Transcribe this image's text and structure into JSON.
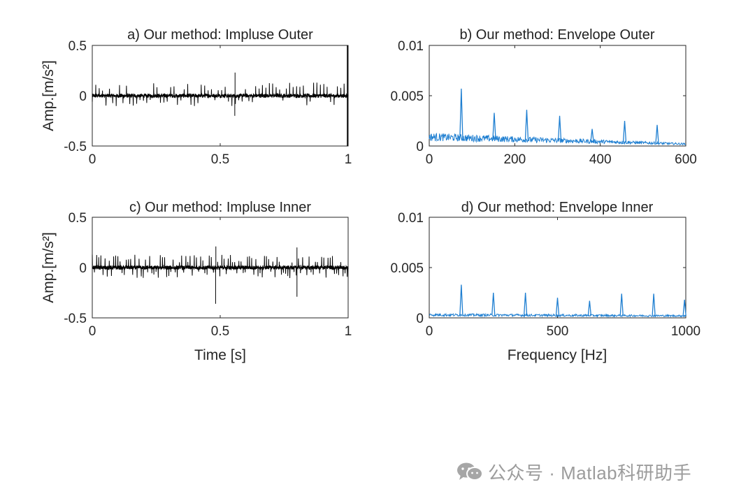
{
  "chart_data": [
    {
      "id": "a",
      "type": "line",
      "title": "a) Our method: Impluse Outer",
      "xlabel": "",
      "ylabel": "Amp.[m/s²]",
      "xlim": [
        0,
        1
      ],
      "ylim": [
        -0.5,
        0.5
      ],
      "xticks": [
        0,
        0.5,
        1
      ],
      "xtick_labels": [
        "0",
        "0.5",
        "1"
      ],
      "yticks": [
        -0.5,
        0,
        0.5
      ],
      "ytick_labels": [
        "-0.5",
        "0",
        "0.5"
      ],
      "color": "#000000",
      "series": [
        {
          "name": "impulse",
          "impulse_interval_s": 0.0133,
          "typical_peak": 0.1,
          "max_peak": 0.23,
          "min_value": -0.2,
          "edge_spike_at_1s": 0.5,
          "noise_level": 0.02
        }
      ]
    },
    {
      "id": "b",
      "type": "line",
      "title": "b) Our method: Envelope Outer",
      "xlabel": "",
      "ylabel": "",
      "xlim": [
        0,
        600
      ],
      "ylim": [
        0,
        0.01
      ],
      "xticks": [
        0,
        200,
        400,
        600
      ],
      "xtick_labels": [
        "0",
        "200",
        "400",
        "600"
      ],
      "yticks": [
        0,
        0.005,
        0.01
      ],
      "ytick_labels": [
        "0",
        "0.005",
        "0.01"
      ],
      "color": "#1f7fd1",
      "series": [
        {
          "name": "envelope",
          "peaks_hz": [
            75,
            152,
            228,
            305,
            381,
            457,
            533
          ],
          "peak_amps": [
            0.0057,
            0.0033,
            0.0036,
            0.003,
            0.0017,
            0.0025,
            0.0021
          ],
          "baseline_start": 0.0009,
          "baseline_end": 0.0002
        }
      ]
    },
    {
      "id": "c",
      "type": "line",
      "title": "c) Our method: Impluse Inner",
      "xlabel": "Time [s]",
      "ylabel": "Amp.[m/s²]",
      "xlim": [
        0,
        1
      ],
      "ylim": [
        -0.5,
        0.5
      ],
      "xticks": [
        0,
        0.5,
        1
      ],
      "xtick_labels": [
        "0",
        "0.5",
        "1"
      ],
      "yticks": [
        -0.5,
        0,
        0.5
      ],
      "ytick_labels": [
        "-0.5",
        "0",
        "0.5"
      ],
      "color": "#000000",
      "series": [
        {
          "name": "impulse",
          "impulse_interval_s": 0.0083,
          "typical_peak": 0.1,
          "max_peak": 0.21,
          "min_value": -0.36,
          "noise_level": 0.02
        }
      ]
    },
    {
      "id": "d",
      "type": "line",
      "title": "d) Our method: Envelope Inner",
      "xlabel": "Frequency [Hz]",
      "ylabel": "",
      "xlim": [
        0,
        1000
      ],
      "ylim": [
        0,
        0.01
      ],
      "xticks": [
        0,
        500,
        1000
      ],
      "xtick_labels": [
        "0",
        "500",
        "1000"
      ],
      "yticks": [
        0,
        0.005,
        0.01
      ],
      "ytick_labels": [
        "0",
        "0.005",
        "0.01"
      ],
      "color": "#1f7fd1",
      "series": [
        {
          "name": "envelope",
          "peaks_hz": [
            125,
            250,
            375,
            500,
            625,
            750,
            875,
            995
          ],
          "peak_amps": [
            0.0033,
            0.0025,
            0.0025,
            0.002,
            0.0017,
            0.0024,
            0.0024,
            0.0018
          ],
          "baseline_start": 0.0003,
          "baseline_end": 0.0002
        }
      ]
    }
  ],
  "watermark": {
    "icon": "wechat-icon",
    "text": "公众号 · Matlab科研助手",
    "color": "#9c9c9c"
  }
}
